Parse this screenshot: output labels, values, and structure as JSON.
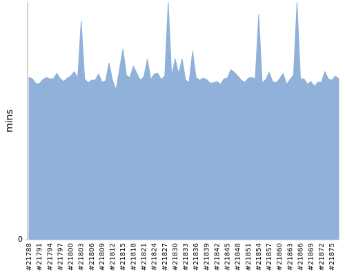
{
  "chart_data": {
    "type": "area",
    "y_label": "mins",
    "color": "#8fb1da",
    "categories": [
      "#21788",
      null,
      null,
      "#21791",
      null,
      null,
      "#21794",
      null,
      null,
      "#21797",
      null,
      null,
      "#21800",
      null,
      null,
      "#21803",
      null,
      null,
      "#21806",
      null,
      null,
      "#21809",
      null,
      null,
      "#21812",
      null,
      null,
      "#21815",
      null,
      null,
      "#21818",
      null,
      null,
      "#21821",
      null,
      null,
      "#21824",
      null,
      null,
      "#21827",
      null,
      null,
      "#21830",
      null,
      null,
      "#21833",
      null,
      null,
      "#21836",
      null,
      null,
      "#21839",
      null,
      null,
      "#21842",
      null,
      null,
      "#21845",
      null,
      null,
      "#21848",
      null,
      null,
      "#21851",
      null,
      null,
      "#21854",
      null,
      null,
      "#21857",
      null,
      null,
      "#21860",
      null,
      null,
      "#21863",
      null,
      null,
      "#21866",
      null,
      null,
      "#21869",
      null,
      null,
      "#21872",
      null,
      null,
      "#21875",
      null,
      null
    ],
    "values": [
      47.8,
      47.4,
      46,
      46,
      47.2,
      47.8,
      47.4,
      47.4,
      49,
      47.4,
      46.6,
      47.6,
      48.2,
      49.5,
      47.8,
      64.5,
      47.4,
      46.2,
      47,
      47,
      48.8,
      46.4,
      46.8,
      52.1,
      47,
      44.2,
      50.3,
      56.2,
      48.4,
      47.8,
      51.1,
      49,
      47,
      48,
      53.3,
      47.2,
      48.8,
      49,
      47.2,
      48.2,
      70,
      48.2,
      53.3,
      49,
      53.3,
      47,
      46.4,
      55.6,
      47.8,
      47,
      47.6,
      47.2,
      46.2,
      46.2,
      46.6,
      45.8,
      47.4,
      47.6,
      50.1,
      49.3,
      48.2,
      47,
      46.4,
      47.6,
      47.8,
      47.4,
      66.5,
      46.2,
      47.2,
      49.3,
      46.6,
      46.2,
      47.4,
      49,
      45.8,
      47.2,
      48.6,
      70,
      47.4,
      47.4,
      45.8,
      46.6,
      45.2,
      46.4,
      46.4,
      49.5,
      47.4,
      47,
      48.2,
      47.4
    ],
    "ylim": [
      0,
      70
    ],
    "yticks": [
      0
    ]
  }
}
